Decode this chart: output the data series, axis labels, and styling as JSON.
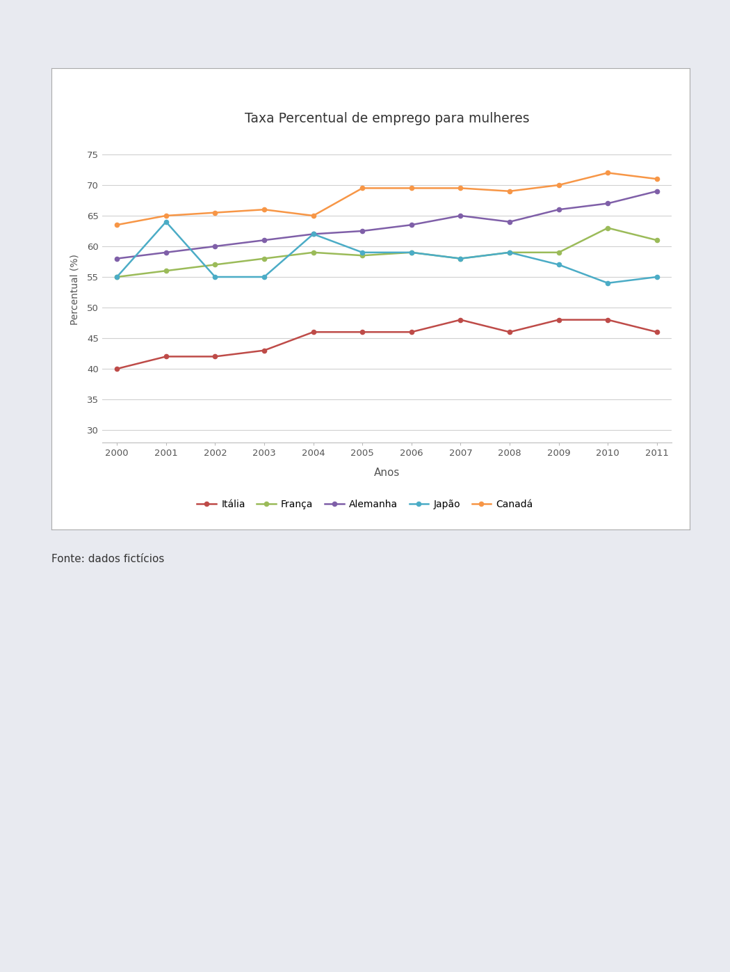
{
  "title": "Taxa Percentual de emprego para mulheres",
  "xlabel": "Anos",
  "ylabel": "Percentual (%)",
  "years": [
    2000,
    2001,
    2002,
    2003,
    2004,
    2005,
    2006,
    2007,
    2008,
    2009,
    2010,
    2011
  ],
  "series": {
    "Itália": [
      40.0,
      42.0,
      42.0,
      43.0,
      46.0,
      46.0,
      46.0,
      48.0,
      46.0,
      48.0,
      48.0,
      46.0
    ],
    "França": [
      55.0,
      56.0,
      57.0,
      58.0,
      59.0,
      58.5,
      59.0,
      58.0,
      59.0,
      59.0,
      63.0,
      61.0
    ],
    "Alemanha": [
      58.0,
      59.0,
      60.0,
      61.0,
      62.0,
      62.5,
      63.5,
      65.0,
      64.0,
      66.0,
      67.0,
      69.0
    ],
    "Japão": [
      55.0,
      64.0,
      55.0,
      55.0,
      62.0,
      59.0,
      59.0,
      58.0,
      59.0,
      57.0,
      54.0,
      55.0
    ],
    "Canadá": [
      63.5,
      65.0,
      65.5,
      66.0,
      65.0,
      69.5,
      69.5,
      69.5,
      69.0,
      70.0,
      72.0,
      71.0
    ]
  },
  "colors": {
    "Itália": "#be4b48",
    "França": "#9bbb59",
    "Alemanha": "#7f5fa8",
    "Japão": "#4bacc6",
    "Canadá": "#f79646"
  },
  "ylim": [
    28,
    78
  ],
  "yticks": [
    30,
    35,
    40,
    45,
    50,
    55,
    60,
    65,
    70,
    75
  ],
  "source_text": "Fonte: dados fictícios",
  "top_bar_color": "#2e74b5",
  "bg_color": "#e8eaf0",
  "chart_bg_color": "#ffffff",
  "grid_color": "#d0d0d0",
  "border_color": "#aaaaaa"
}
